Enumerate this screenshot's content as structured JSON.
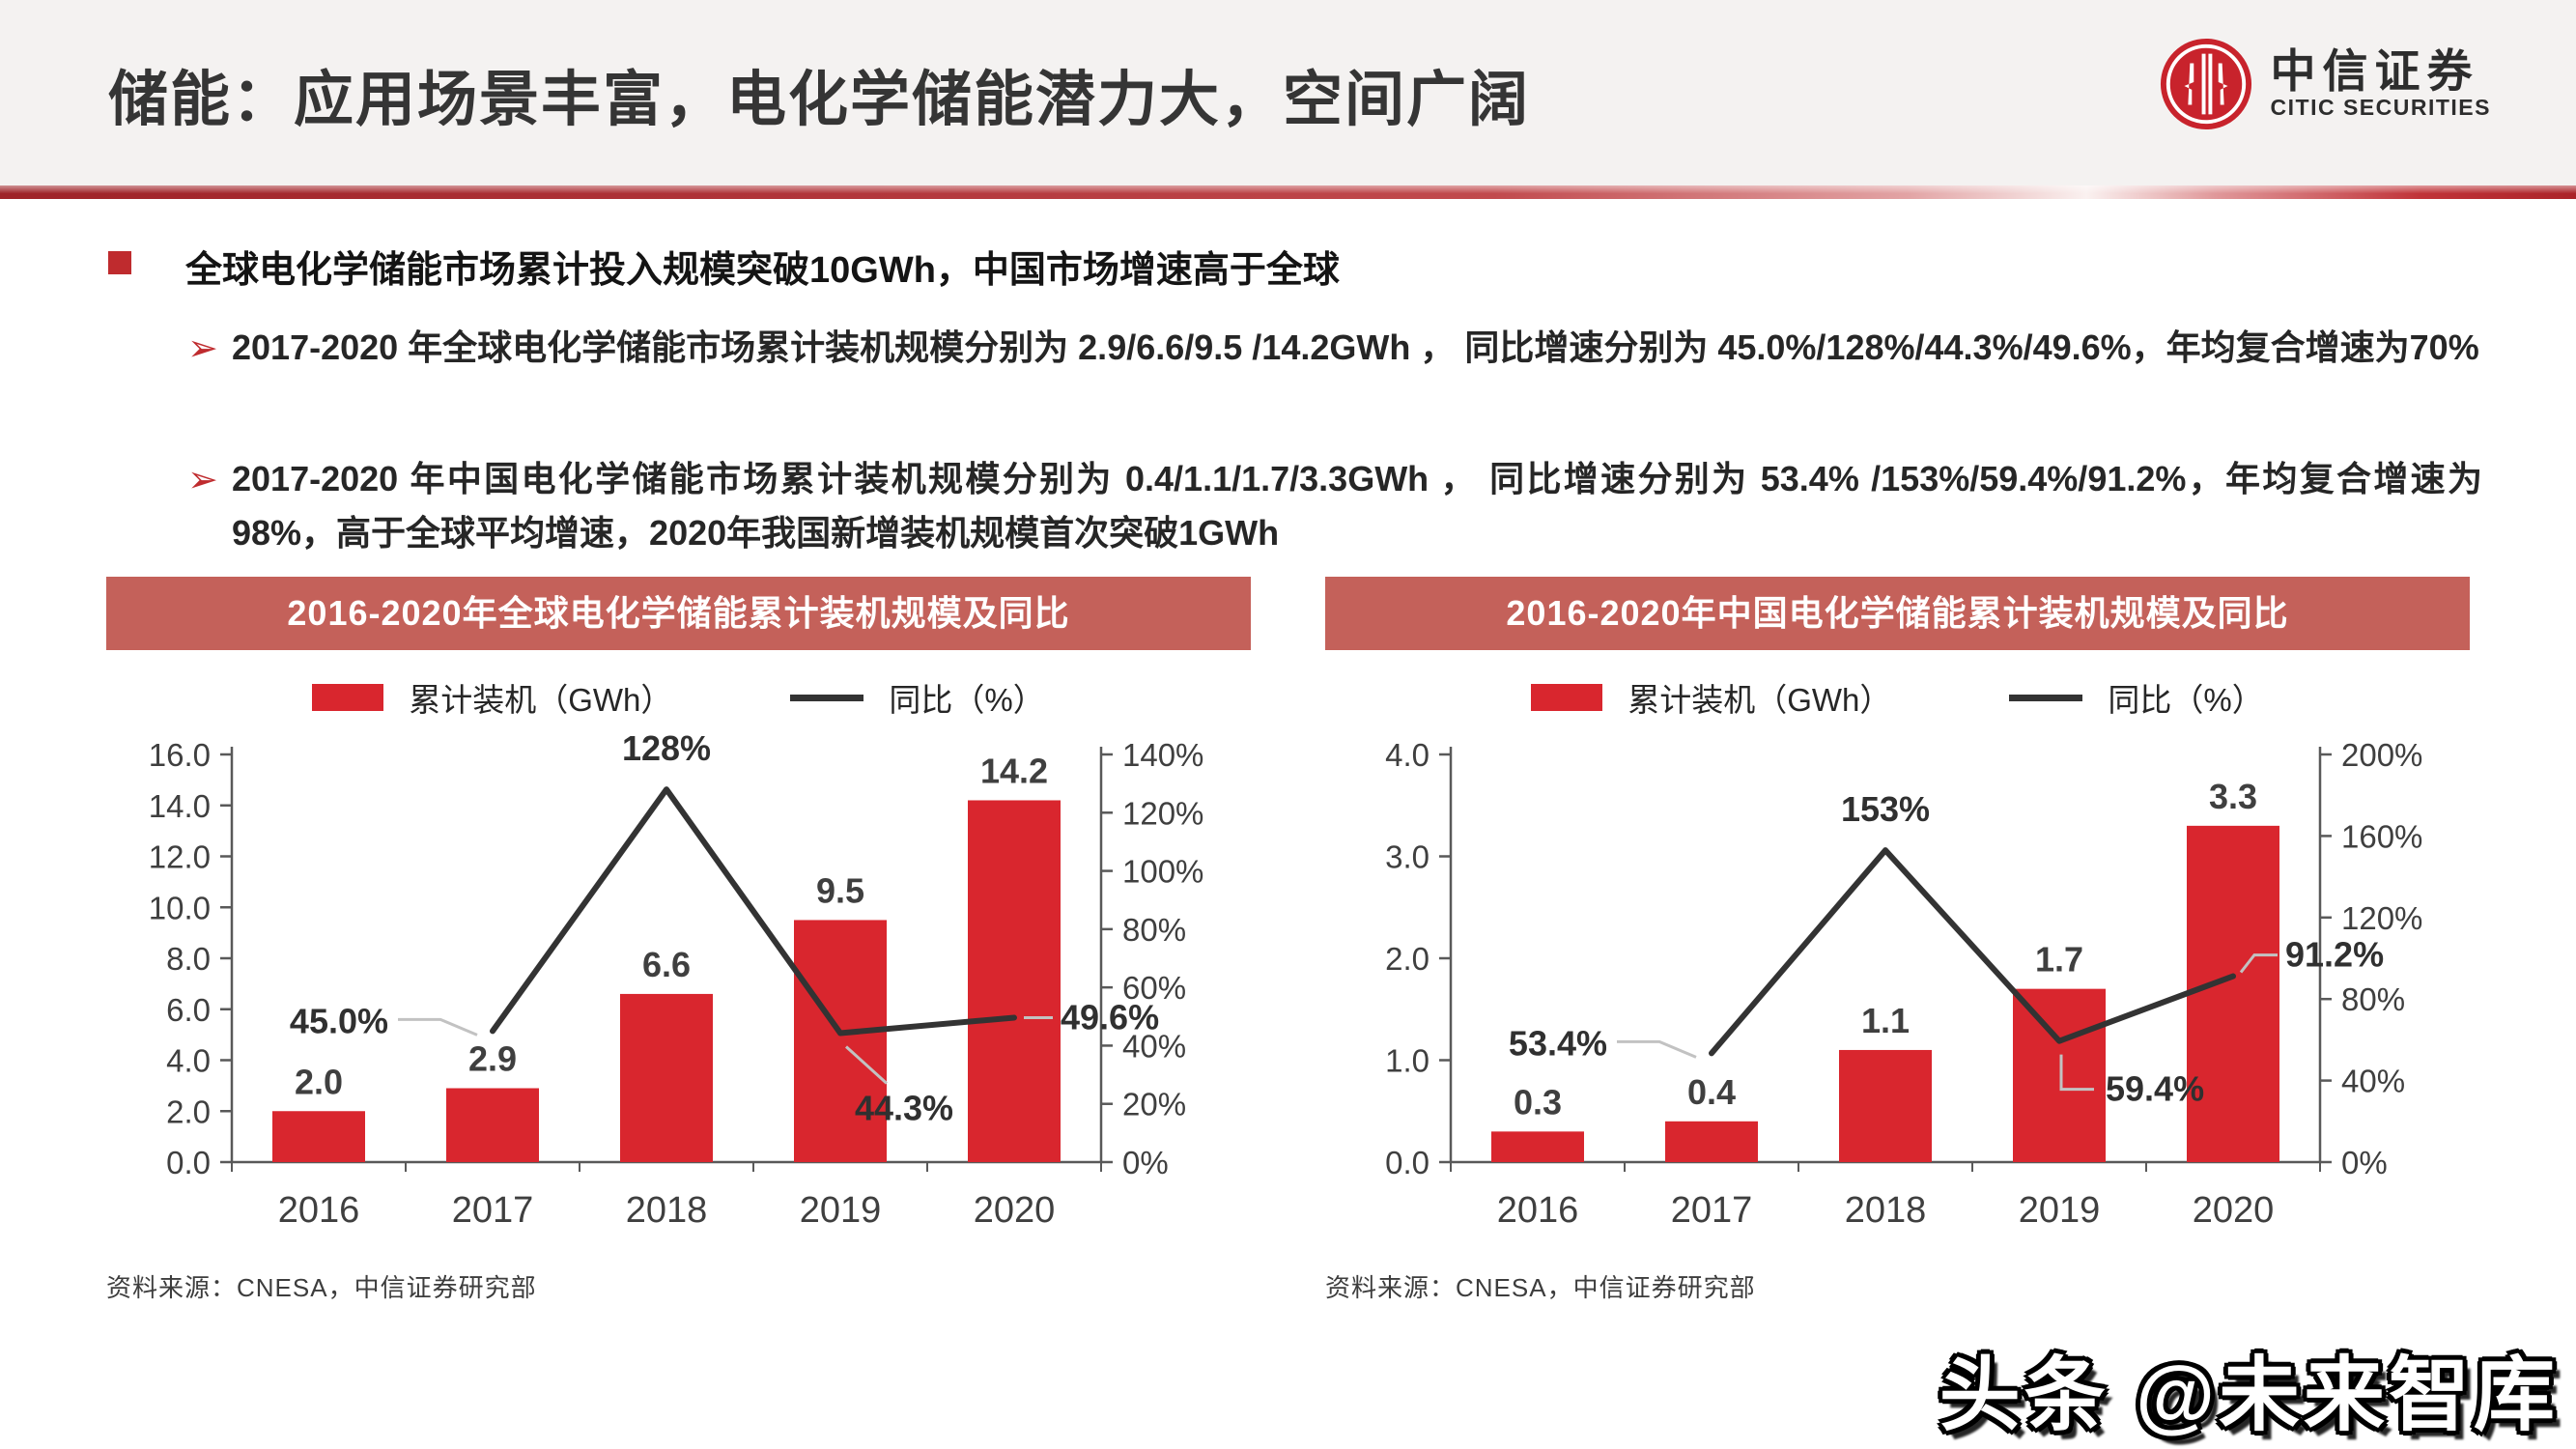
{
  "header": {
    "title": "储能：应用场景丰富，电化学储能潜力大，空间广阔",
    "logo_cn": "中信证券",
    "logo_en": "CITIC SECURITIES"
  },
  "bullets": {
    "marker": "➢",
    "main": "全球电化学储能市场累计投入规模突破10GWh，中国市场增速高于全球",
    "sub1": "2017-2020 年全球电化学储能市场累计装机规模分别为 2.9/6.6/9.5 /14.2GWh ， 同比增速分别为 45.0%/128%/44.3%/49.6%，年均复合增速为70%",
    "sub2": "2017-2020 年中国电化学储能市场累计装机规模分别为 0.4/1.1/1.7/3.3GWh ， 同比增速分别为 53.4% /153%/59.4%/91.2%，年均复合增速为98%，高于全球平均增速，2020年我国新增装机规模首次突破1GWh"
  },
  "colors": {
    "bar": "#d9262e",
    "line": "#333333",
    "leader": "#c2c2c2",
    "banner_bg": "#c4615a",
    "accent_red": "#bf2b2e",
    "logo_red": "#c8232c"
  },
  "chart_data": [
    {
      "type": "bar+line",
      "title": "2016-2020年全球电化学储能累计装机规模及同比",
      "categories": [
        "2016",
        "2017",
        "2018",
        "2019",
        "2020"
      ],
      "series": [
        {
          "name": "累计装机（GWh）",
          "type": "bar",
          "values": [
            2.0,
            2.9,
            6.6,
            9.5,
            14.2
          ],
          "labels": [
            "2.0",
            "2.9",
            "6.6",
            "9.5",
            "14.2"
          ]
        },
        {
          "name": "同比（%）",
          "type": "line",
          "values": [
            null,
            45.0,
            128,
            44.3,
            49.6
          ],
          "labels": [
            "",
            "45.0%",
            "128%",
            "44.3%",
            "49.6%"
          ]
        }
      ],
      "left_axis": {
        "min": 0,
        "max": 16,
        "step": 2,
        "tick_labels": [
          "0.0",
          "2.0",
          "4.0",
          "6.0",
          "8.0",
          "10.0",
          "12.0",
          "14.0",
          "16.0"
        ]
      },
      "right_axis": {
        "min": 0,
        "max": 140,
        "step": 20,
        "tick_labels": [
          "0%",
          "20%",
          "40%",
          "60%",
          "80%",
          "100%",
          "120%",
          "140%"
        ]
      },
      "legend_position": "top",
      "grid": false,
      "label_placements": [
        null,
        "left",
        "above",
        "below",
        "right"
      ],
      "source": "资料来源：CNESA，中信证券研究部"
    },
    {
      "type": "bar+line",
      "title": "2016-2020年中国电化学储能累计装机规模及同比",
      "categories": [
        "2016",
        "2017",
        "2018",
        "2019",
        "2020"
      ],
      "series": [
        {
          "name": "累计装机（GWh）",
          "type": "bar",
          "values": [
            0.3,
            0.4,
            1.1,
            1.7,
            3.3
          ],
          "labels": [
            "0.3",
            "0.4",
            "1.1",
            "1.7",
            "3.3"
          ]
        },
        {
          "name": "同比（%）",
          "type": "line",
          "values": [
            null,
            53.4,
            153,
            59.4,
            91.2
          ],
          "labels": [
            "",
            "53.4%",
            "153%",
            "59.4%",
            "91.2%"
          ]
        }
      ],
      "left_axis": {
        "min": 0,
        "max": 4,
        "step": 1,
        "tick_labels": [
          "0.0",
          "1.0",
          "2.0",
          "3.0",
          "4.0"
        ]
      },
      "right_axis": {
        "min": 0,
        "max": 200,
        "step": 40,
        "tick_labels": [
          "0%",
          "40%",
          "80%",
          "120%",
          "160%",
          "200%"
        ]
      },
      "legend_position": "top",
      "grid": false,
      "label_placements": [
        null,
        "left",
        "above",
        "below-right",
        "right-up"
      ],
      "source": "资料来源：CNESA，中信证券研究部"
    }
  ],
  "footer": {
    "watermark": "头条 @未来智库"
  }
}
